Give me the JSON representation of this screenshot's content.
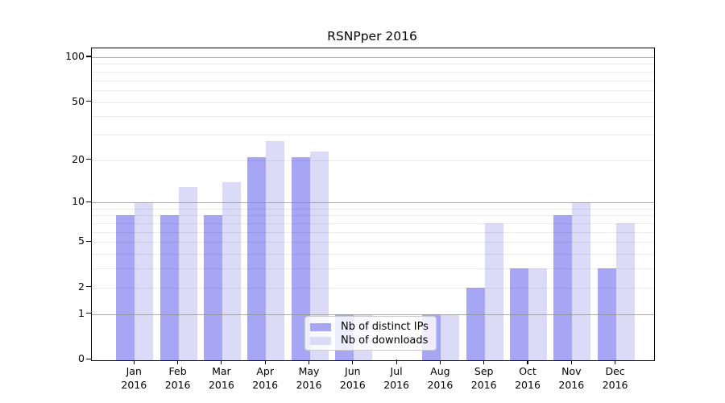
{
  "title": "RSNPper 2016",
  "colors": {
    "distinct_ips_bar": "#a6a6f4",
    "downloads_bar": "#dbdbf8",
    "major_gridline": "#8c8c8c",
    "minor_gridline": "#eeeeee",
    "axis": "#000000",
    "legend_border": "#cccccc"
  },
  "legend": {
    "items": [
      {
        "label": "Nb of distinct IPs",
        "color": "#a6a6f4"
      },
      {
        "label": "Nb of downloads",
        "color": "#dbdbf8"
      }
    ]
  },
  "chart_data": {
    "type": "bar",
    "title": "RSNPper 2016",
    "categories": [
      "Jan",
      "Feb",
      "Mar",
      "Apr",
      "May",
      "Jun",
      "Jul",
      "Aug",
      "Sep",
      "Oct",
      "Nov",
      "Dec"
    ],
    "category_year": "2016",
    "series": [
      {
        "name": "Nb of distinct IPs",
        "color": "#a6a6f4",
        "values": [
          8,
          8,
          8,
          21,
          21,
          1,
          0,
          1,
          2,
          3,
          8,
          3
        ]
      },
      {
        "name": "Nb of downloads",
        "color": "#dbdbf8",
        "values": [
          10,
          13,
          14,
          27,
          23,
          1,
          0,
          1,
          7,
          3,
          10,
          7
        ]
      }
    ],
    "xlabel": "",
    "ylabel": "",
    "y_axis_type": "log10(value+1)",
    "ylim": [
      0,
      115
    ],
    "y_ticks": [
      0,
      1,
      2,
      5,
      10,
      20,
      50,
      100
    ],
    "y_major_gridlines": [
      1,
      10,
      100
    ],
    "y_minor_gridlines": [
      2,
      3,
      4,
      5,
      6,
      7,
      8,
      9,
      20,
      30,
      40,
      50,
      60,
      70,
      80,
      90
    ],
    "grid": true,
    "legend_position": "lower center"
  }
}
